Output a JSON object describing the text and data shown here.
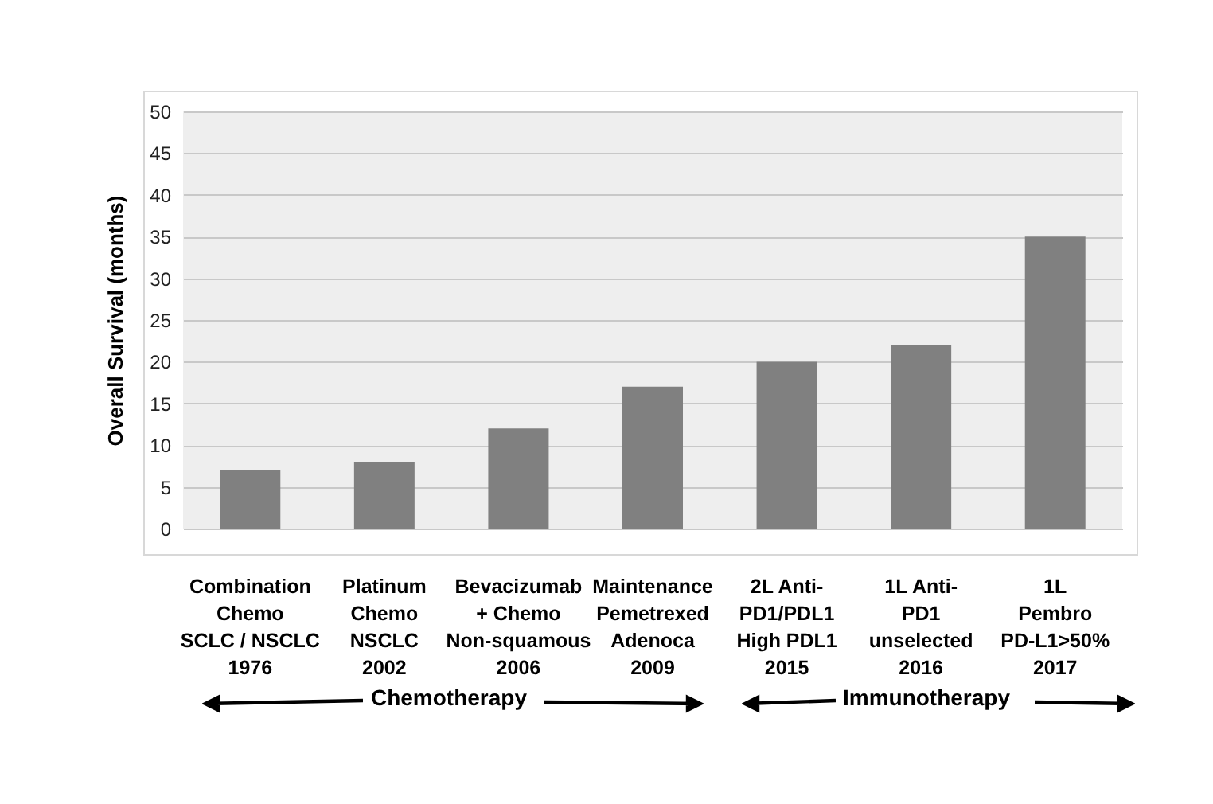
{
  "chart_data": {
    "type": "bar",
    "ylabel": "Overall Survival (months)",
    "categories": [
      "Combination\nChemo\nSCLC / NSCLC\n1976",
      "Platinum\nChemo\nNSCLC\n2002",
      "Bevacizumab\n+ Chemo\nNon-squamous\n2006",
      "Maintenance\nPemetrexed\nAdenoca\n2009",
      "2L Anti-\nPD1/PDL1\nHigh PDL1\n2015",
      "1L Anti-\nPD1\nunselected\n2016",
      "1L\nPembro\nPD-L1>50%\n2017"
    ],
    "values": [
      7,
      8,
      12,
      17,
      20,
      22,
      35
    ],
    "color": "#808080",
    "ylim": [
      0,
      50
    ],
    "yticks": [
      0,
      5,
      10,
      15,
      20,
      25,
      30,
      35,
      40,
      45,
      50
    ],
    "grid": "y",
    "annotations": [
      "Chemotherapy",
      "Immunotherapy"
    ]
  }
}
